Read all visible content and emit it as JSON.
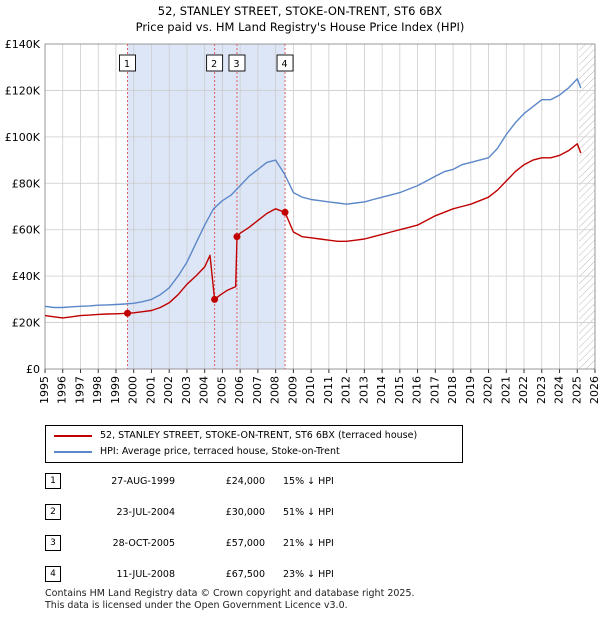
{
  "colors": {
    "price_line": "#c00000",
    "hpi_line": "#5b87c8",
    "shade": "#dde6f7",
    "vline": "#e06060",
    "grid": "#cccccc"
  },
  "chart_data": {
    "type": "line",
    "title": "52, STANLEY STREET, STOKE-ON-TRENT, ST6 6BX",
    "subtitle": "Price paid vs. HM Land Registry's House Price Index (HPI)",
    "xlabel": "",
    "ylabel": "",
    "xlim": [
      1995,
      2026
    ],
    "ylim": [
      0,
      140000
    ],
    "y_ticks": [
      0,
      20000,
      40000,
      60000,
      80000,
      100000,
      120000,
      140000
    ],
    "y_tick_labels": [
      "£0",
      "£20K",
      "£40K",
      "£60K",
      "£80K",
      "£100K",
      "£120K",
      "£140K"
    ],
    "x_ticks": [
      1995,
      1996,
      1997,
      1998,
      1999,
      2000,
      2001,
      2002,
      2003,
      2004,
      2005,
      2006,
      2007,
      2008,
      2009,
      2010,
      2011,
      2012,
      2013,
      2014,
      2015,
      2016,
      2017,
      2018,
      2019,
      2020,
      2021,
      2022,
      2023,
      2024,
      2025,
      2026
    ],
    "x_tick_labels": [
      "1995",
      "1996",
      "1997",
      "1998",
      "1999",
      "2000",
      "2001",
      "2002",
      "2003",
      "2004",
      "2005",
      "2006",
      "2007",
      "2008",
      "2009",
      "2010",
      "2011",
      "2012",
      "2013",
      "2014",
      "2015",
      "2016",
      "2017",
      "2018",
      "2019",
      "2020",
      "2021",
      "2022",
      "2023",
      "2024",
      "2025",
      "2026"
    ],
    "grid": true,
    "shaded_range": [
      1999.65,
      2008.53
    ],
    "future_hatch_start": 2025.1,
    "series": [
      {
        "name": "HPI: Average price, terraced house, Stoke-on-Trent",
        "role": "hpi",
        "x": [
          1995.0,
          1995.5,
          1996.0,
          1996.5,
          1997.0,
          1997.5,
          1998.0,
          1998.5,
          1999.0,
          1999.5,
          2000.0,
          2000.5,
          2001.0,
          2001.5,
          2002.0,
          2002.5,
          2003.0,
          2003.5,
          2004.0,
          2004.5,
          2005.0,
          2005.5,
          2006.0,
          2006.5,
          2007.0,
          2007.5,
          2008.0,
          2008.5,
          2009.0,
          2009.5,
          2010.0,
          2010.5,
          2011.0,
          2011.5,
          2012.0,
          2012.5,
          2013.0,
          2013.5,
          2014.0,
          2014.5,
          2015.0,
          2015.5,
          2016.0,
          2016.5,
          2017.0,
          2017.5,
          2018.0,
          2018.5,
          2019.0,
          2019.5,
          2020.0,
          2020.5,
          2021.0,
          2021.5,
          2022.0,
          2022.5,
          2023.0,
          2023.5,
          2024.0,
          2024.5,
          2025.0,
          2025.2
        ],
        "y": [
          27000,
          26500,
          26500,
          26800,
          27000,
          27200,
          27500,
          27600,
          27800,
          28000,
          28300,
          29000,
          30000,
          32000,
          35000,
          40000,
          46000,
          54000,
          62000,
          69000,
          72500,
          75000,
          79000,
          83000,
          86000,
          89000,
          90000,
          84000,
          76000,
          74000,
          73000,
          72500,
          72000,
          71500,
          71000,
          71500,
          72000,
          73000,
          74000,
          75000,
          76000,
          77500,
          79000,
          81000,
          83000,
          85000,
          86000,
          88000,
          89000,
          90000,
          91000,
          95000,
          101000,
          106000,
          110000,
          113000,
          116000,
          116000,
          118000,
          121000,
          125000,
          121000
        ]
      },
      {
        "name": "52, STANLEY STREET, STOKE-ON-TRENT, ST6 6BX (terraced house)",
        "role": "price",
        "x": [
          1995.0,
          1995.5,
          1996.0,
          1996.5,
          1997.0,
          1997.5,
          1998.0,
          1998.5,
          1999.0,
          1999.65,
          2000.0,
          2000.5,
          2001.0,
          2001.5,
          2002.0,
          2002.5,
          2003.0,
          2003.5,
          2004.0,
          2004.3,
          2004.56,
          2004.9,
          2005.3,
          2005.75,
          2005.82,
          2006.0,
          2006.5,
          2007.0,
          2007.5,
          2008.0,
          2008.53,
          2009.0,
          2009.5,
          2010.0,
          2010.5,
          2011.0,
          2011.5,
          2012.0,
          2012.5,
          2013.0,
          2013.5,
          2014.0,
          2014.5,
          2015.0,
          2015.5,
          2016.0,
          2016.5,
          2017.0,
          2017.5,
          2018.0,
          2018.5,
          2019.0,
          2019.5,
          2020.0,
          2020.5,
          2021.0,
          2021.5,
          2022.0,
          2022.5,
          2023.0,
          2023.5,
          2024.0,
          2024.5,
          2025.0,
          2025.2
        ],
        "y": [
          23000,
          22500,
          22000,
          22500,
          23000,
          23200,
          23500,
          23700,
          23800,
          24000,
          24200,
          24700,
          25200,
          26500,
          28500,
          32000,
          36500,
          40000,
          44000,
          49000,
          30000,
          32000,
          34000,
          35500,
          57000,
          58500,
          61000,
          64000,
          67000,
          69000,
          67500,
          59000,
          57000,
          56500,
          56000,
          55500,
          55000,
          55000,
          55500,
          56000,
          57000,
          58000,
          59000,
          60000,
          61000,
          62000,
          64000,
          66000,
          67500,
          69000,
          70000,
          71000,
          72500,
          74000,
          77000,
          81000,
          85000,
          88000,
          90000,
          91000,
          91000,
          92000,
          94000,
          97000,
          93000
        ]
      }
    ],
    "transactions": [
      {
        "num": "1",
        "x": 1999.65,
        "y": 24000,
        "date": "27-AUG-1999",
        "price": "£24,000",
        "hpi": "15% ↓ HPI"
      },
      {
        "num": "2",
        "x": 2004.56,
        "y": 30000,
        "date": "23-JUL-2004",
        "price": "£30,000",
        "hpi": "51% ↓ HPI"
      },
      {
        "num": "3",
        "x": 2005.82,
        "y": 57000,
        "date": "28-OCT-2005",
        "price": "£57,000",
        "hpi": "21% ↓ HPI"
      },
      {
        "num": "4",
        "x": 2008.53,
        "y": 67500,
        "date": "11-JUL-2008",
        "price": "£67,500",
        "hpi": "23% ↓ HPI"
      }
    ]
  },
  "legend": {
    "price_label": "52, STANLEY STREET, STOKE-ON-TRENT, ST6 6BX (terraced house)",
    "hpi_label": "HPI: Average price, terraced house, Stoke-on-Trent"
  },
  "footer": {
    "line1": "Contains HM Land Registry data © Crown copyright and database right 2025.",
    "line2": "This data is licensed under the Open Government Licence v3.0."
  }
}
